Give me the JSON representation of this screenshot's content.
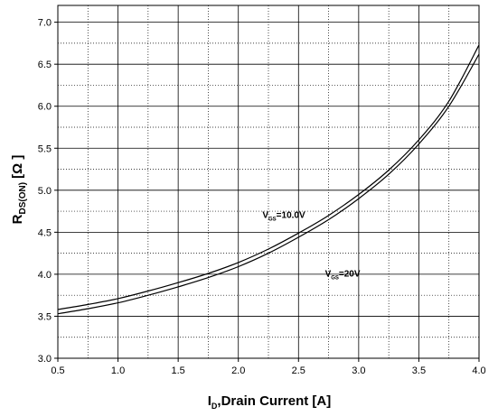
{
  "chart_data": {
    "type": "line",
    "title": "",
    "xlabel": {
      "main": "I",
      "sub": "D",
      "rest": ",Drain Current [A]"
    },
    "ylabel": {
      "main": "R",
      "sub": "DS(ON)",
      "rest": " [Ω ]"
    },
    "xlim": [
      0.5,
      4.0
    ],
    "ylim": [
      3.0,
      7.2
    ],
    "x_ticks": [
      "0.5",
      "1.0",
      "1.5",
      "2.0",
      "2.5",
      "3.0",
      "3.5",
      "4.0"
    ],
    "y_ticks": [
      "3.0",
      "3.5",
      "4.0",
      "4.5",
      "5.0",
      "5.5",
      "6.0",
      "6.5",
      "7.0"
    ],
    "grid": {
      "major": true,
      "minor": true
    },
    "series": [
      {
        "name": "V_GS=10.0V",
        "x": [
          0.5,
          0.75,
          1.0,
          1.25,
          1.5,
          1.75,
          2.0,
          2.25,
          2.5,
          2.75,
          3.0,
          3.25,
          3.5,
          3.75,
          4.0
        ],
        "y": [
          3.58,
          3.64,
          3.71,
          3.8,
          3.9,
          4.01,
          4.14,
          4.3,
          4.49,
          4.7,
          4.95,
          5.24,
          5.6,
          6.06,
          6.73
        ]
      },
      {
        "name": "V_GS=20V",
        "x": [
          0.5,
          0.75,
          1.0,
          1.25,
          1.5,
          1.75,
          2.0,
          2.25,
          2.5,
          2.75,
          3.0,
          3.25,
          3.5,
          3.75,
          4.0
        ],
        "y": [
          3.53,
          3.59,
          3.66,
          3.75,
          3.85,
          3.96,
          4.09,
          4.25,
          4.44,
          4.65,
          4.9,
          5.19,
          5.55,
          6.0,
          6.62
        ]
      }
    ],
    "annotations": [
      {
        "main": "V",
        "sub": "GS",
        "rest": "=10.0V",
        "x": 2.2,
        "y": 4.67
      },
      {
        "main": "V",
        "sub": "GS",
        "rest": "=20V",
        "x": 2.72,
        "y": 3.97
      }
    ]
  }
}
